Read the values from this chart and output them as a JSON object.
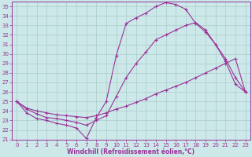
{
  "xlabel": "Windchill (Refroidissement éolien,°C)",
  "background_color": "#cce8e8",
  "line_color": "#993399",
  "grid_color": "#aacccc",
  "xlim_min": -0.5,
  "xlim_max": 23.5,
  "ylim_min": 21.0,
  "ylim_max": 35.5,
  "xticks": [
    0,
    1,
    2,
    3,
    4,
    5,
    6,
    7,
    8,
    9,
    10,
    11,
    12,
    13,
    14,
    15,
    16,
    17,
    18,
    19,
    20,
    21,
    22,
    23
  ],
  "yticks": [
    21,
    22,
    23,
    24,
    25,
    26,
    27,
    28,
    29,
    30,
    31,
    32,
    33,
    34,
    35
  ],
  "curve1_x": [
    0,
    1,
    2,
    3,
    4,
    5,
    6,
    7,
    8,
    9,
    10,
    11,
    12,
    13,
    14,
    15,
    16,
    17,
    18,
    19,
    20,
    21,
    22,
    23
  ],
  "curve1_y": [
    25.0,
    23.8,
    23.2,
    23.0,
    22.7,
    22.5,
    22.2,
    21.1,
    23.3,
    25.0,
    29.8,
    33.2,
    33.8,
    34.3,
    35.0,
    35.4,
    35.2,
    34.7,
    33.2,
    32.3,
    31.0,
    29.2,
    26.8,
    26.0
  ],
  "curve2_x": [
    0,
    1,
    2,
    3,
    4,
    5,
    6,
    7,
    8,
    9,
    10,
    11,
    12,
    13,
    14,
    15,
    16,
    17,
    18,
    19,
    20,
    21,
    22,
    23
  ],
  "curve2_y": [
    25.0,
    24.2,
    23.7,
    23.3,
    23.2,
    23.0,
    22.8,
    22.5,
    23.0,
    23.5,
    25.5,
    27.5,
    29.0,
    30.2,
    31.5,
    32.0,
    32.5,
    33.0,
    33.3,
    32.5,
    31.0,
    29.5,
    27.5,
    26.0
  ],
  "curve3_x": [
    0,
    1,
    2,
    3,
    4,
    5,
    6,
    7,
    8,
    9,
    10,
    11,
    12,
    13,
    14,
    15,
    16,
    17,
    18,
    19,
    20,
    21,
    22,
    23
  ],
  "curve3_y": [
    25.0,
    24.3,
    24.0,
    23.8,
    23.6,
    23.5,
    23.4,
    23.3,
    23.5,
    23.8,
    24.2,
    24.5,
    24.9,
    25.3,
    25.8,
    26.2,
    26.6,
    27.0,
    27.5,
    28.0,
    28.5,
    29.0,
    29.5,
    26.0
  ]
}
